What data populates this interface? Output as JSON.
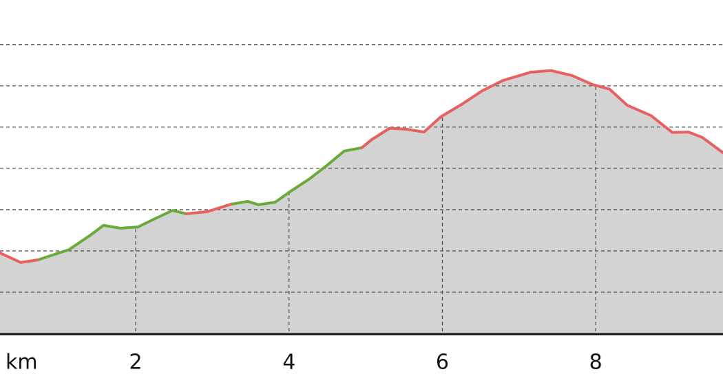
{
  "chart_data": {
    "type": "area-profile",
    "x_label": "km",
    "x": [
      0.23,
      0.5,
      0.72,
      1.13,
      1.4,
      1.58,
      1.8,
      2.03,
      2.25,
      2.48,
      2.66,
      2.93,
      3.24,
      3.46,
      3.6,
      3.82,
      4.0,
      4.27,
      4.5,
      4.72,
      4.95,
      5.08,
      5.31,
      5.53,
      5.76,
      5.98,
      6.25,
      6.52,
      6.79,
      7.15,
      7.42,
      7.69,
      7.96,
      8.18,
      8.41,
      8.72,
      9.0,
      9.21,
      9.39,
      9.66
    ],
    "series": [
      {
        "color": "#6aaa3a",
        "values": [
          null,
          null,
          1.78,
          2.03,
          2.37,
          2.62,
          2.55,
          2.58,
          2.78,
          2.98,
          2.9,
          null,
          3.13,
          3.2,
          3.12,
          3.18,
          3.42,
          3.75,
          4.08,
          4.42,
          4.5,
          4.7,
          4.97,
          null,
          null,
          null,
          null,
          null,
          null,
          null,
          null,
          null,
          null,
          null,
          null,
          null,
          null,
          null,
          null,
          null
        ]
      },
      {
        "color": "#e8605f",
        "values": [
          1.95,
          1.72,
          1.78,
          null,
          null,
          null,
          null,
          null,
          null,
          null,
          2.9,
          2.95,
          3.13,
          null,
          null,
          null,
          null,
          null,
          null,
          null,
          4.5,
          4.7,
          4.97,
          4.95,
          4.88,
          5.25,
          5.55,
          5.88,
          6.13,
          6.33,
          6.37,
          6.25,
          6.03,
          5.92,
          5.53,
          5.28,
          4.87,
          4.88,
          4.75,
          4.38
        ]
      }
    ],
    "fill_color": "#d3d3d3",
    "xlim": [
      0.23,
      9.66
    ],
    "ylim": [
      0,
      8.08
    ],
    "xticks": [
      2,
      4,
      6,
      8
    ],
    "yticks": [
      1,
      2,
      3,
      4,
      5,
      6,
      7
    ],
    "grid": true
  }
}
